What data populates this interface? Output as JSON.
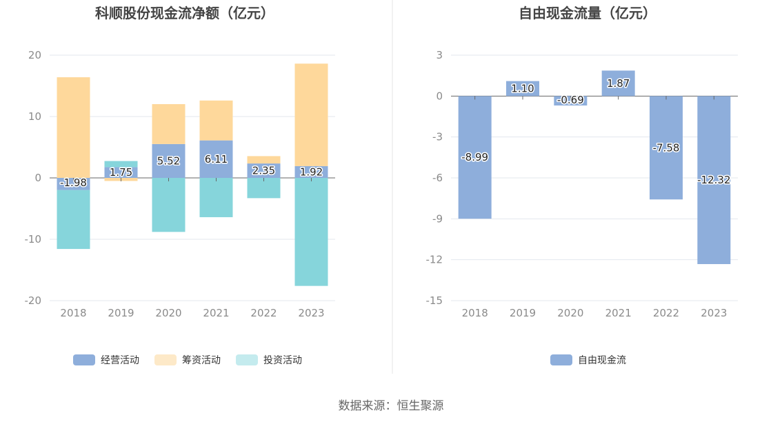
{
  "chart_data": [
    {
      "type": "bar",
      "stacked": true,
      "title": "科顺股份现金流净额（亿元）",
      "categories": [
        "2018",
        "2019",
        "2020",
        "2021",
        "2022",
        "2023"
      ],
      "ylim": [
        -20,
        20
      ],
      "yticks": [
        20,
        10,
        0,
        -10,
        -20
      ],
      "grid": true,
      "legend_position": "bottom",
      "series": [
        {
          "name": "经营活动",
          "color": "#8eaedb",
          "values": [
            -1.98,
            1.75,
            5.52,
            6.11,
            2.35,
            1.92
          ],
          "labels": [
            "-1.98",
            "1.75",
            "5.52",
            "6.11",
            "2.35",
            "1.92"
          ]
        },
        {
          "name": "筹资活动",
          "color": "#fed89b",
          "values": [
            16.4,
            -0.5,
            6.5,
            6.5,
            1.2,
            16.7
          ]
        },
        {
          "name": "投资活动",
          "color": "#86d5db",
          "values": [
            -9.6,
            1.0,
            -8.8,
            -6.4,
            -3.3,
            -17.6
          ]
        }
      ]
    },
    {
      "type": "bar",
      "title": "自由现金流量（亿元）",
      "categories": [
        "2018",
        "2019",
        "2020",
        "2021",
        "2022",
        "2023"
      ],
      "ylim": [
        -15,
        3
      ],
      "yticks": [
        3,
        0,
        -3,
        -6,
        -9,
        -12,
        -15
      ],
      "grid": true,
      "legend_position": "bottom",
      "series": [
        {
          "name": "自由现金流",
          "color": "#8eaedb",
          "values": [
            -8.99,
            1.1,
            -0.69,
            1.87,
            -7.58,
            -12.32
          ],
          "labels": [
            "-8.99",
            "1.10",
            "-0.69",
            "1.87",
            "-7.58",
            "-12.32"
          ]
        }
      ]
    }
  ],
  "footer": {
    "source": "数据来源：恒生聚源"
  }
}
